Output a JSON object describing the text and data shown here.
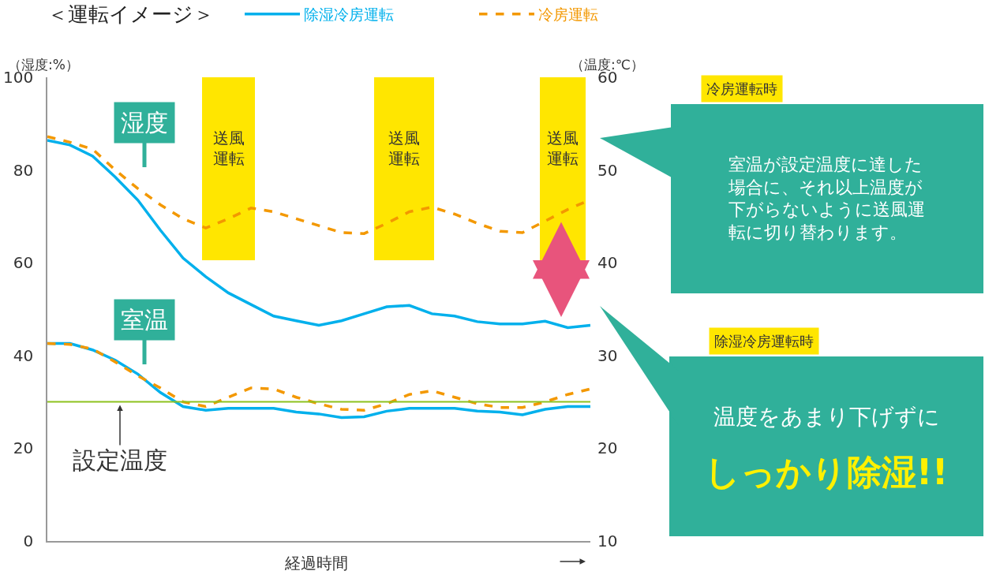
{
  "chart_data": {
    "type": "line",
    "title": "＜運転イメージ＞",
    "xlabel": "経過時間",
    "ylabel": "（湿度:%）",
    "y2label": "（温度:℃）",
    "categories": [
      null,
      null,
      null,
      null,
      null,
      null,
      null,
      null,
      null,
      null,
      null,
      null,
      null,
      null,
      null,
      null,
      null,
      null,
      null,
      null,
      null,
      null,
      null,
      null,
      null
    ],
    "ylim": [
      0,
      100
    ],
    "yticks": [
      0,
      20,
      40,
      60,
      80,
      100
    ],
    "y2lim": [
      10,
      60
    ],
    "y2ticks": [
      10,
      20,
      30,
      40,
      50,
      60
    ],
    "tick_labels": "y",
    "grid": false,
    "legend": "top",
    "marker": "none",
    "series": [
      {
        "name": "除湿冷房運転",
        "color": "#00b0ec",
        "line_style": "solid",
        "values": [
          86.4,
          85.4,
          83,
          78.5,
          73.5,
          67,
          61,
          57,
          53.5,
          51,
          48.5,
          47.5,
          46.5,
          47.5,
          49,
          50.5,
          50.8,
          49,
          48.5,
          47.3,
          46.8,
          46.8,
          47.4,
          46,
          46.5
        ]
      },
      {
        "name": "冷房運転",
        "color": "#f39800",
        "line_style": "dashed",
        "values": [
          87.2,
          86,
          84.5,
          80,
          76,
          72.5,
          69.5,
          67.5,
          69.5,
          71.8,
          71,
          69.5,
          68,
          66.5,
          66.3,
          68.5,
          71,
          72,
          70.5,
          68.5,
          66.8,
          66.5,
          69,
          71.5,
          73.6
        ]
      },
      {
        "color": "#00b0ec",
        "line_style": "solid",
        "axis": "y2",
        "values": [
          31.3,
          31.3,
          30.6,
          29.5,
          28,
          26,
          24.5,
          24.1,
          24.3,
          24.3,
          24.3,
          23.9,
          23.7,
          23.3,
          23.4,
          24,
          24.3,
          24.3,
          24.3,
          24,
          23.9,
          23.6,
          24.2,
          24.5,
          24.5
        ]
      },
      {
        "color": "#f39800",
        "line_style": "dashed",
        "axis": "y2",
        "values": [
          31.3,
          31.2,
          30.7,
          29.3,
          27.8,
          26.5,
          25,
          24.5,
          25.5,
          26.5,
          26.4,
          25.5,
          24.8,
          24.2,
          24.1,
          24.8,
          25.8,
          26.2,
          25.5,
          24.8,
          24.4,
          24.4,
          25,
          25.8,
          26.4
        ]
      }
    ],
    "ref_lines": [
      {
        "axis": "y2",
        "value": 25,
        "label": "設定温度",
        "color": "#8dc21f"
      }
    ],
    "annotations": [
      "湿度",
      "室温",
      "冷房運転時",
      "室温が設定温度に達した場合に、それ以上温度が下がらないように送風運転に切り替わります。",
      "除湿冷房運転時",
      "温度をあまり下げずに",
      "しっかり除湿!!",
      "送風運転",
      "送風運転",
      "送風運転"
    ]
  }
}
